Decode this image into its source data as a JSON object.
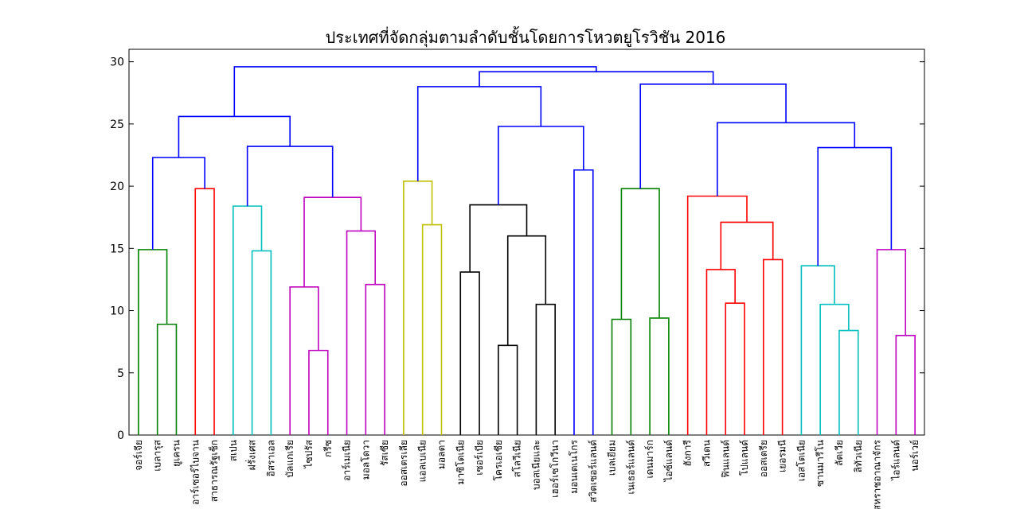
{
  "chart_data": {
    "type": "dendrogram",
    "title": "ประเทศที่จัดกลุ่มตามลำดับชั้นโดยการโหวตยูโรวิชัน 2016",
    "ylim": [
      0,
      31
    ],
    "yticks": [
      0,
      5,
      10,
      15,
      20,
      25,
      30
    ],
    "grid": false,
    "leaves": [
      "จอร์เจีย",
      "เบลารุส",
      "ยูเครน",
      "อาร์เซอร์ไบจาน",
      "สาธารณรัฐเช็ก",
      "สเปน",
      "ฝรั่งเศส",
      "อิสราเอล",
      "บัลแกเรีย",
      "ไซปรัส",
      "กรีซ",
      "อาร์เมเนีย",
      "มอลโดวา",
      "รัสเซีย",
      "ออสเตรเลีย",
      "แอลเบเนีย",
      "มอลตา",
      "มาซิโดเนีย",
      "เซอร์เบีย",
      "โครเอเชีย",
      "สโลวีเนีย",
      "บอสเนียและ",
      "เฮอร์เซโกวีนา",
      "มอนเตเนโกร",
      "สวิตเซอร์แลนด์",
      "เบลเยียม",
      "เนเธอร์แลนด์",
      "เดนมาร์ก",
      "ไอซ์แลนด์",
      "ฮังการี",
      "สวีเดน",
      "ฟินแลนด์",
      "โปแลนด์",
      "ออสเตรีย",
      "เยอรมนี",
      "เอสโตเนีย",
      "ซานมารีโน",
      "ลัตเวีย",
      "ลิทัวเนีย",
      "สหราชอาณาจักร",
      "ไอร์แลนด์",
      "นอร์เวย์"
    ],
    "merges": [
      {
        "color": "#008000",
        "height": 14.9,
        "left": {
          "leaf": 0
        },
        "right": {
          "merge": 1
        }
      },
      {
        "color": "#008000",
        "height": 8.9,
        "left": {
          "leaf": 1
        },
        "right": {
          "leaf": 2
        }
      },
      {
        "color": "#ff0000",
        "height": 19.8,
        "left": {
          "leaf": 3
        },
        "right": {
          "leaf": 4
        }
      },
      {
        "color": "#0000ff",
        "height": 22.3,
        "left": {
          "merge": 0
        },
        "right": {
          "merge": 2
        }
      },
      {
        "color": "#00bfbf",
        "height": 18.4,
        "left": {
          "leaf": 5
        },
        "right": {
          "merge": 5
        }
      },
      {
        "color": "#00bfbf",
        "height": 14.8,
        "left": {
          "leaf": 6
        },
        "right": {
          "leaf": 7
        }
      },
      {
        "color": "#bf00bf",
        "height": 6.8,
        "left": {
          "leaf": 9
        },
        "right": {
          "leaf": 10
        }
      },
      {
        "color": "#bf00bf",
        "height": 11.9,
        "left": {
          "leaf": 8
        },
        "right": {
          "merge": 6
        }
      },
      {
        "color": "#bf00bf",
        "height": 12.1,
        "left": {
          "leaf": 12
        },
        "right": {
          "leaf": 13
        }
      },
      {
        "color": "#bf00bf",
        "height": 16.4,
        "left": {
          "leaf": 11
        },
        "right": {
          "merge": 8
        }
      },
      {
        "color": "#bf00bf",
        "height": 19.1,
        "left": {
          "merge": 7
        },
        "right": {
          "merge": 9
        }
      },
      {
        "color": "#0000ff",
        "height": 23.2,
        "left": {
          "merge": 4
        },
        "right": {
          "merge": 10
        }
      },
      {
        "color": "#0000ff",
        "height": 25.6,
        "left": {
          "merge": 3
        },
        "right": {
          "merge": 11
        }
      },
      {
        "color": "#bfbf00",
        "height": 16.9,
        "left": {
          "leaf": 15
        },
        "right": {
          "leaf": 16
        }
      },
      {
        "color": "#bfbf00",
        "height": 20.4,
        "left": {
          "leaf": 14
        },
        "right": {
          "merge": 13
        }
      },
      {
        "color": "#000000",
        "height": 13.1,
        "left": {
          "leaf": 17
        },
        "right": {
          "leaf": 18
        }
      },
      {
        "color": "#000000",
        "height": 7.2,
        "left": {
          "leaf": 19
        },
        "right": {
          "leaf": 20
        }
      },
      {
        "color": "#000000",
        "height": 10.5,
        "left": {
          "leaf": 21
        },
        "right": {
          "leaf": 22
        }
      },
      {
        "color": "#000000",
        "height": 16.0,
        "left": {
          "merge": 16
        },
        "right": {
          "merge": 17
        }
      },
      {
        "color": "#000000",
        "height": 18.5,
        "left": {
          "merge": 15
        },
        "right": {
          "merge": 18
        }
      },
      {
        "color": "#0000ff",
        "height": 21.3,
        "left": {
          "leaf": 23
        },
        "right": {
          "leaf": 24
        }
      },
      {
        "color": "#0000ff",
        "height": 24.8,
        "left": {
          "merge": 19
        },
        "right": {
          "merge": 20
        }
      },
      {
        "color": "#0000ff",
        "height": 28.0,
        "left": {
          "merge": 14
        },
        "right": {
          "merge": 21
        }
      },
      {
        "color": "#008000",
        "height": 9.3,
        "left": {
          "leaf": 25
        },
        "right": {
          "leaf": 26
        }
      },
      {
        "color": "#008000",
        "height": 9.4,
        "left": {
          "leaf": 27
        },
        "right": {
          "leaf": 28
        }
      },
      {
        "color": "#008000",
        "height": 19.8,
        "left": {
          "merge": 23
        },
        "right": {
          "merge": 24
        }
      },
      {
        "color": "#ff0000",
        "height": 10.6,
        "left": {
          "leaf": 31
        },
        "right": {
          "leaf": 32
        }
      },
      {
        "color": "#ff0000",
        "height": 13.3,
        "left": {
          "leaf": 30
        },
        "right": {
          "merge": 26
        }
      },
      {
        "color": "#ff0000",
        "height": 14.1,
        "left": {
          "leaf": 33
        },
        "right": {
          "leaf": 34
        }
      },
      {
        "color": "#ff0000",
        "height": 17.1,
        "left": {
          "merge": 27
        },
        "right": {
          "merge": 28
        }
      },
      {
        "color": "#ff0000",
        "height": 19.2,
        "left": {
          "leaf": 29
        },
        "right": {
          "merge": 29
        }
      },
      {
        "color": "#00bfbf",
        "height": 8.4,
        "left": {
          "leaf": 37
        },
        "right": {
          "leaf": 38
        }
      },
      {
        "color": "#00bfbf",
        "height": 10.5,
        "left": {
          "leaf": 36
        },
        "right": {
          "merge": 31
        }
      },
      {
        "color": "#00bfbf",
        "height": 13.6,
        "left": {
          "leaf": 35
        },
        "right": {
          "merge": 32
        }
      },
      {
        "color": "#bf00bf",
        "height": 8.0,
        "left": {
          "leaf": 40
        },
        "right": {
          "leaf": 41
        }
      },
      {
        "color": "#bf00bf",
        "height": 14.9,
        "left": {
          "leaf": 39
        },
        "right": {
          "merge": 34
        }
      },
      {
        "color": "#0000ff",
        "height": 23.1,
        "left": {
          "merge": 33
        },
        "right": {
          "merge": 35
        }
      },
      {
        "color": "#0000ff",
        "height": 25.1,
        "left": {
          "merge": 30
        },
        "right": {
          "merge": 36
        }
      },
      {
        "color": "#0000ff",
        "height": 28.2,
        "left": {
          "merge": 25
        },
        "right": {
          "merge": 37
        }
      },
      {
        "color": "#0000ff",
        "height": 29.2,
        "left": {
          "merge": 22
        },
        "right": {
          "merge": 38
        }
      },
      {
        "color": "#0000ff",
        "height": 29.6,
        "left": {
          "merge": 12
        },
        "right": {
          "merge": 39
        }
      }
    ]
  }
}
